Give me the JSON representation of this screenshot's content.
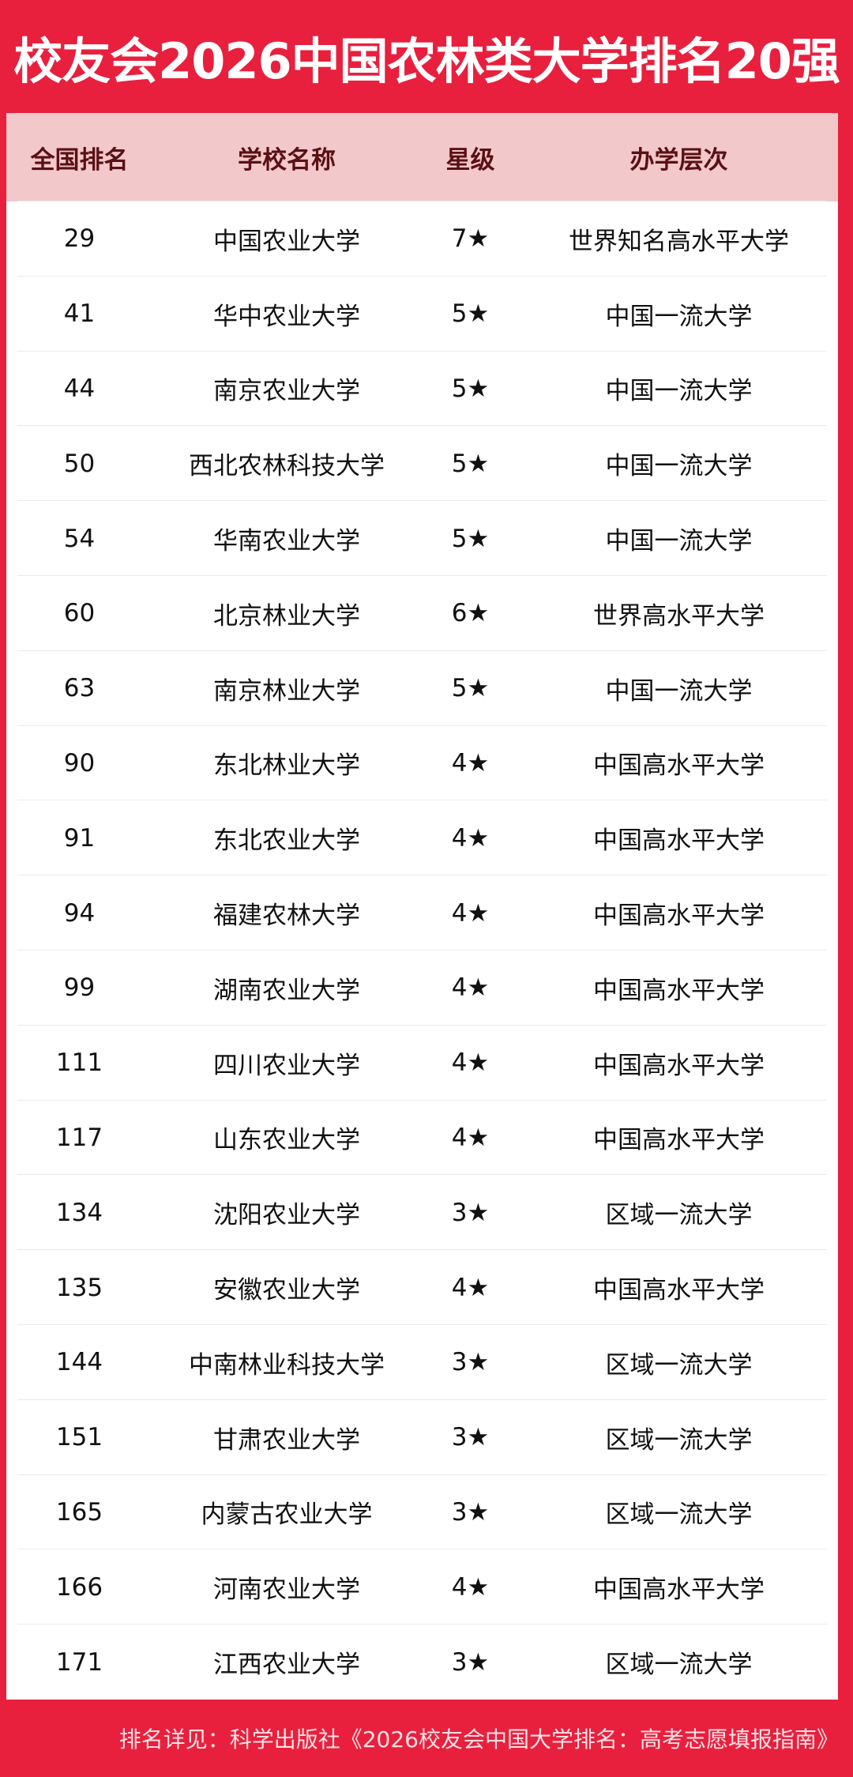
{
  "title": "校友会2026中国农林类大学排名20强",
  "colors": {
    "accent": "#e8203e",
    "header_bg": "#f2c8ca",
    "header_text": "#5a1015"
  },
  "headers": [
    "全国排名",
    "学校名称",
    "星级",
    "办学层次"
  ],
  "rows": [
    [
      "29",
      "中国农业大学",
      "7★",
      "世界知名高水平大学"
    ],
    [
      "41",
      "华中农业大学",
      "5★",
      "中国一流大学"
    ],
    [
      "44",
      "南京农业大学",
      "5★",
      "中国一流大学"
    ],
    [
      "50",
      "西北农林科技大学",
      "5★",
      "中国一流大学"
    ],
    [
      "54",
      "华南农业大学",
      "5★",
      "中国一流大学"
    ],
    [
      "60",
      "北京林业大学",
      "6★",
      "世界高水平大学"
    ],
    [
      "63",
      "南京林业大学",
      "5★",
      "中国一流大学"
    ],
    [
      "90",
      "东北林业大学",
      "4★",
      "中国高水平大学"
    ],
    [
      "91",
      "东北农业大学",
      "4★",
      "中国高水平大学"
    ],
    [
      "94",
      "福建农林大学",
      "4★",
      "中国高水平大学"
    ],
    [
      "99",
      "湖南农业大学",
      "4★",
      "中国高水平大学"
    ],
    [
      "111",
      "四川农业大学",
      "4★",
      "中国高水平大学"
    ],
    [
      "117",
      "山东农业大学",
      "4★",
      "中国高水平大学"
    ],
    [
      "134",
      "沈阳农业大学",
      "3★",
      "区域一流大学"
    ],
    [
      "135",
      "安徽农业大学",
      "4★",
      "中国高水平大学"
    ],
    [
      "144",
      "中南林业科技大学",
      "3★",
      "区域一流大学"
    ],
    [
      "151",
      "甘肃农业大学",
      "3★",
      "区域一流大学"
    ],
    [
      "165",
      "内蒙古农业大学",
      "3★",
      "区域一流大学"
    ],
    [
      "166",
      "河南农业大学",
      "4★",
      "中国高水平大学"
    ],
    [
      "171",
      "江西农业大学",
      "3★",
      "区域一流大学"
    ]
  ],
  "footer": "排名详见：科学出版社《2026校友会中国大学排名：高考志愿填报指南》"
}
